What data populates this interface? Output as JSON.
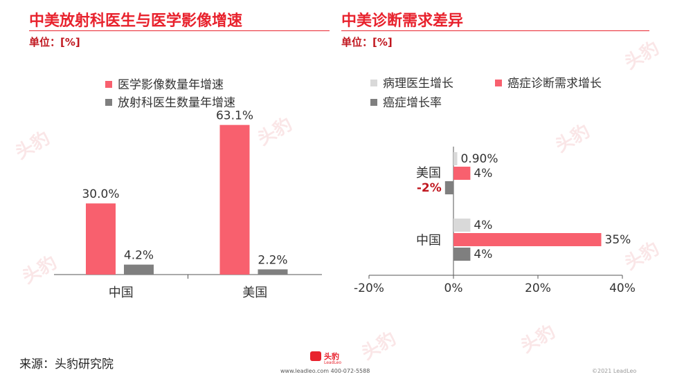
{
  "left": {
    "title": "中美放射科医生与医学影像增速",
    "unit": "单位：[%]"
  },
  "right": {
    "title": "中美诊断需求差异",
    "unit": "单位：[%]"
  },
  "footer": {
    "source": "来源：头豹研究院",
    "logo_text": "头豹",
    "logo_sub": "LeadLeo",
    "contact": "www.leadleo.com  400-072-5588",
    "copyright": "©2021 LeadLeo"
  },
  "watermark": {
    "text": "头豹"
  },
  "colors": {
    "brand_red": "#e8222d",
    "pink": "#f8606e",
    "gray_dark": "#7f7f7f",
    "gray_light": "#d9d9d9"
  },
  "chart_data": [
    {
      "type": "bar",
      "categories": [
        "中国",
        "美国"
      ],
      "series": [
        {
          "name": "医学影像数量年增速",
          "values": [
            30.0,
            63.1
          ],
          "labels": [
            "30.0%",
            "63.1%"
          ],
          "color": "#f8606e"
        },
        {
          "name": "放射科医生数量年增速",
          "values": [
            4.2,
            2.2
          ],
          "labels": [
            "4.2%",
            "2.2%"
          ],
          "color": "#7f7f7f"
        }
      ],
      "ylim": [
        0,
        70
      ],
      "legend_position": "top",
      "grid": false
    },
    {
      "type": "bar",
      "orientation": "horizontal",
      "categories": [
        "中国",
        "美国"
      ],
      "series": [
        {
          "name": "病理医生增长",
          "values": [
            4,
            0.9
          ],
          "labels": [
            "4%",
            "0.90%"
          ],
          "color": "#d9d9d9"
        },
        {
          "name": "癌症诊断需求增长",
          "values": [
            35,
            4
          ],
          "labels": [
            "35%",
            "4%"
          ],
          "color": "#f8606e"
        },
        {
          "name": "癌症增长率",
          "values": [
            4,
            -2
          ],
          "labels": [
            "4%",
            "-2%"
          ],
          "color": "#7f7f7f"
        }
      ],
      "xlim": [
        -20,
        40
      ],
      "xticks": [
        "-20%",
        "0%",
        "20%",
        "40%"
      ],
      "xtick_values": [
        -20,
        0,
        20,
        40
      ],
      "legend_position": "top",
      "grid": false
    }
  ]
}
